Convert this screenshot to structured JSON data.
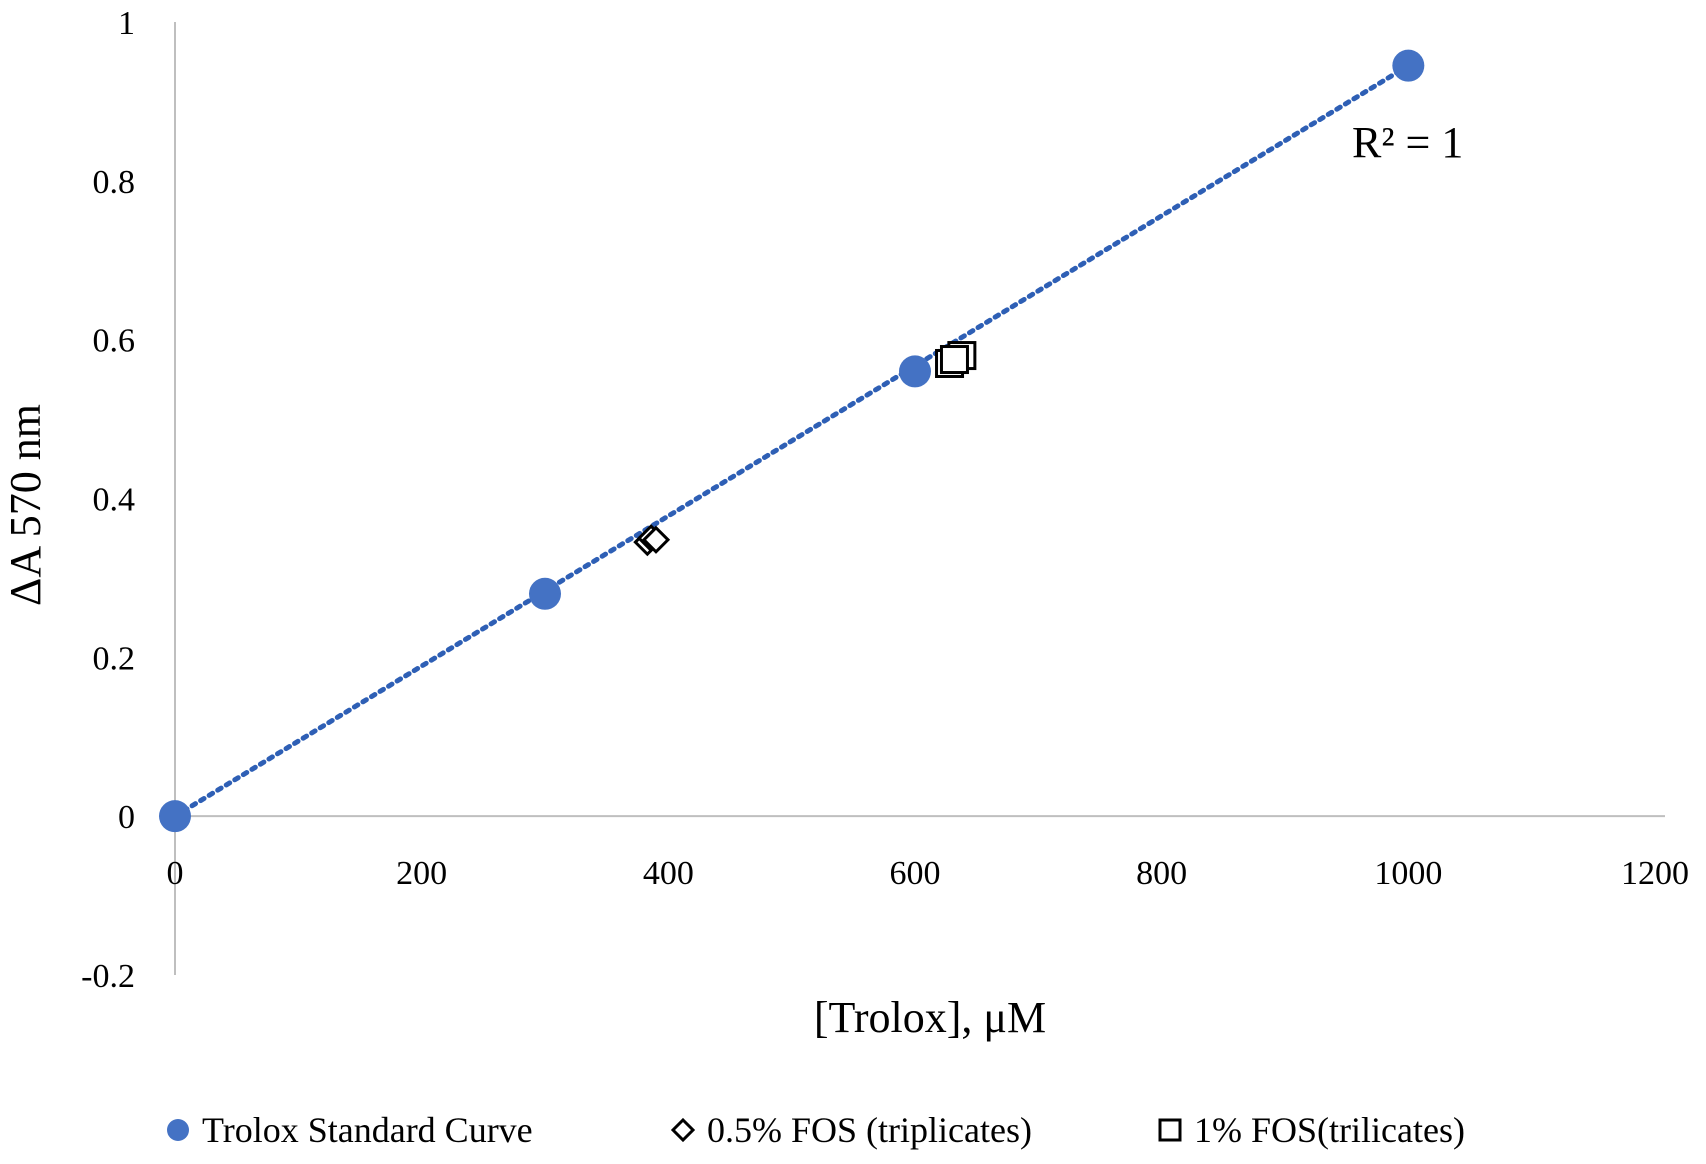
{
  "chart_data": {
    "type": "scatter",
    "title": "",
    "xlabel": "[Trolox], μM",
    "ylabel": "ΔA 570 nm",
    "xlim": [
      0,
      1200
    ],
    "ylim": [
      -0.2,
      1
    ],
    "x_ticks": [
      "0",
      "200",
      "400",
      "600",
      "800",
      "1000",
      "1200"
    ],
    "y_ticks": [
      "-0.2",
      "0",
      "0.2",
      "0.4",
      "0.6",
      "0.8",
      "1"
    ],
    "grid": false,
    "legend_position": "bottom",
    "annotation": "R² = 1",
    "trendline": {
      "type": "linear",
      "style": "dotted",
      "color": "#2e5fb5",
      "from": [
        0,
        0
      ],
      "to": [
        1000,
        0.945
      ]
    },
    "series": [
      {
        "name": "Trolox Standard Curve",
        "marker": "circle",
        "color": "#4472c4",
        "points": [
          [
            0,
            0
          ],
          [
            300,
            0.28
          ],
          [
            600,
            0.56
          ],
          [
            1000,
            0.945
          ]
        ]
      },
      {
        "name": "0.5% FOS (triplicates)",
        "marker": "diamond",
        "color": "#000000",
        "points": [
          [
            383,
            0.345
          ],
          [
            386,
            0.35
          ],
          [
            390,
            0.348
          ]
        ]
      },
      {
        "name": "1% FOS(trilicates)",
        "marker": "square",
        "color": "#000000",
        "points": [
          [
            628,
            0.57
          ],
          [
            638,
            0.58
          ],
          [
            632,
            0.575
          ]
        ]
      }
    ]
  }
}
